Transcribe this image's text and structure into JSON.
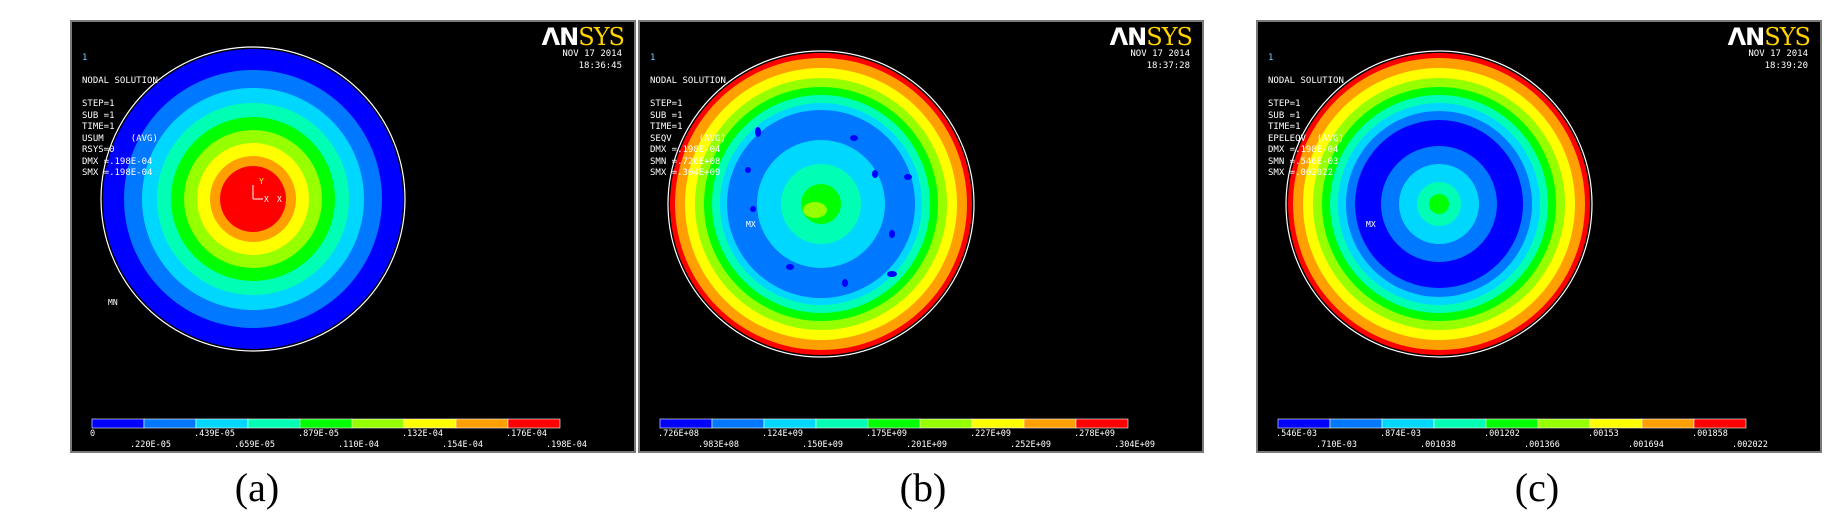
{
  "colors": [
    "#0000ff",
    "#0078ff",
    "#00d7ff",
    "#00ffb4",
    "#00ff00",
    "#96ff00",
    "#ffff00",
    "#ffa000",
    "#ff0000"
  ],
  "panels": [
    {
      "id": "a",
      "caption": "(a)",
      "window_id": "1",
      "info_lines": [
        "NODAL SOLUTION",
        "",
        "STEP=1",
        "SUB =1",
        "TIME=1",
        "USUM     (AVG)",
        "RSYS=0",
        "DMX =.198E-04",
        "SMX =.198E-04"
      ],
      "date": "NOV 17 2014",
      "time": "18:36:45",
      "logo_an": "ΛN",
      "logo_sys": "SYS",
      "legend_top": [
        "0",
        ".439E-05",
        ".879E-05",
        ".132E-04",
        ".176E-04"
      ],
      "legend_bottom": [
        ".220E-05",
        ".659E-05",
        ".110E-04",
        ".154E-04",
        ".198E-04"
      ],
      "mn_label": "MN",
      "axis_labels": [
        "Y",
        "X",
        "X"
      ]
    },
    {
      "id": "b",
      "caption": "(b)",
      "window_id": "1",
      "info_lines": [
        "NODAL SOLUTION",
        "",
        "STEP=1",
        "SUB =1",
        "TIME=1",
        "SEQV     (AVG)",
        "DMX =.198E-04",
        "SMN =.726E+08",
        "SMX =.304E+09"
      ],
      "date": "NOV 17 2014",
      "time": "18:37:28",
      "logo_an": "ΛN",
      "logo_sys": "SYS",
      "legend_top": [
        ".726E+08",
        ".124E+09",
        ".175E+09",
        ".227E+09",
        ".278E+09"
      ],
      "legend_bottom": [
        ".983E+08",
        ".150E+09",
        ".201E+09",
        ".252E+09",
        ".304E+09"
      ],
      "mn_label": "MX"
    },
    {
      "id": "c",
      "caption": "(c)",
      "window_id": "1",
      "info_lines": [
        "NODAL SOLUTION",
        "",
        "STEP=1",
        "SUB =1",
        "TIME=1",
        "EPELEQV  (AVG)",
        "DMX =.198E-04",
        "SMN =.546E-03",
        "SMX =.002022"
      ],
      "date": "NOV 17 2014",
      "time": "18:39:20",
      "logo_an": "ΛN",
      "logo_sys": "SYS",
      "legend_top": [
        ".546E-03",
        ".874E-03",
        ".001202",
        ".00153",
        ".001858"
      ],
      "legend_bottom": [
        ".710E-03",
        ".001038",
        ".001366",
        ".001694",
        ".002022"
      ],
      "mn_label": "MX"
    }
  ]
}
